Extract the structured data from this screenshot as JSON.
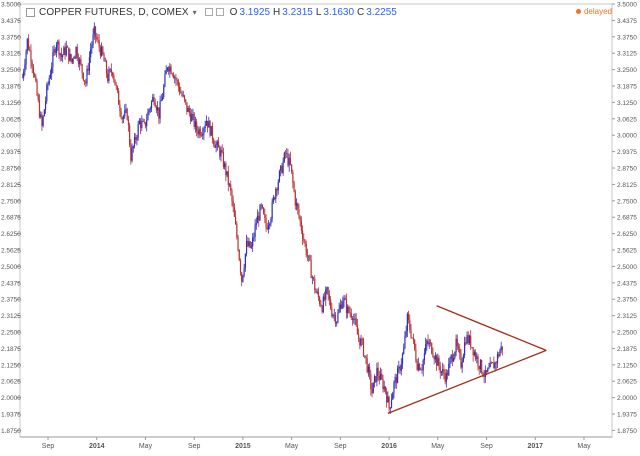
{
  "header": {
    "title": "COPPER FUTURES, D, COMEX",
    "ohlc": [
      {
        "label": "O",
        "value": "3.1925"
      },
      {
        "label": "H",
        "value": "3.2315"
      },
      {
        "label": "L",
        "value": "3.1630"
      },
      {
        "label": "C",
        "value": "3.2255"
      }
    ],
    "status": "delayed"
  },
  "colors": {
    "up": "#2f2fb8",
    "down": "#b83232",
    "trendline": "#a0301a",
    "axis_text": "#555555",
    "status": "#f0731d"
  },
  "chart_data": {
    "type": "candlestick",
    "title": "COPPER FUTURES, D, COMEX",
    "ylim": [
      1.85,
      3.5
    ],
    "y_ticks": [
      "3.5000",
      "3.4375",
      "3.3750",
      "3.3125",
      "3.2500",
      "3.1875",
      "3.1250",
      "3.0625",
      "3.0000",
      "2.9375",
      "2.8750",
      "2.8125",
      "2.7500",
      "2.6875",
      "2.6250",
      "2.5625",
      "2.5000",
      "2.4375",
      "2.3750",
      "2.3125",
      "2.2500",
      "2.1875",
      "2.1250",
      "2.0625",
      "2.0000",
      "1.9375",
      "1.8750"
    ],
    "x_ticks": [
      "Sep",
      "2014",
      "May",
      "Sep",
      "2015",
      "May",
      "Sep",
      "2016",
      "May",
      "Sep",
      "2017",
      "May"
    ],
    "x_tick_index": [
      0.5,
      4.5,
      8.5,
      12.5,
      16.5,
      20.5,
      24.5,
      28.5,
      32.5,
      36.5,
      40.5,
      44.5
    ],
    "x_range_months": [
      -1.8,
      46.8
    ],
    "close_path": [
      [
        -1.6,
        3.22
      ],
      [
        -1.2,
        3.36
      ],
      [
        -0.8,
        3.28
      ],
      [
        -0.4,
        3.15
      ],
      [
        0.0,
        3.03
      ],
      [
        0.4,
        3.17
      ],
      [
        0.8,
        3.27
      ],
      [
        1.2,
        3.36
      ],
      [
        1.6,
        3.3
      ],
      [
        2.0,
        3.33
      ],
      [
        2.4,
        3.28
      ],
      [
        2.8,
        3.33
      ],
      [
        3.2,
        3.26
      ],
      [
        3.6,
        3.2
      ],
      [
        4.0,
        3.33
      ],
      [
        4.3,
        3.39
      ],
      [
        4.6,
        3.35
      ],
      [
        5.0,
        3.3
      ],
      [
        5.4,
        3.22
      ],
      [
        5.8,
        3.25
      ],
      [
        6.2,
        3.15
      ],
      [
        6.6,
        3.07
      ],
      [
        7.0,
        3.08
      ],
      [
        7.3,
        2.92
      ],
      [
        7.6,
        2.97
      ],
      [
        8.0,
        3.05
      ],
      [
        8.4,
        3.03
      ],
      [
        8.8,
        3.1
      ],
      [
        9.2,
        3.15
      ],
      [
        9.6,
        3.08
      ],
      [
        10.0,
        3.18
      ],
      [
        10.3,
        3.27
      ],
      [
        10.7,
        3.25
      ],
      [
        11.1,
        3.2
      ],
      [
        11.5,
        3.15
      ],
      [
        11.9,
        3.1
      ],
      [
        12.3,
        3.07
      ],
      [
        12.7,
        3.02
      ],
      [
        13.1,
        3.02
      ],
      [
        13.5,
        3.06
      ],
      [
        13.9,
        3.01
      ],
      [
        14.3,
        2.96
      ],
      [
        14.7,
        2.93
      ],
      [
        15.1,
        2.86
      ],
      [
        15.5,
        2.78
      ],
      [
        15.8,
        2.68
      ],
      [
        16.1,
        2.58
      ],
      [
        16.4,
        2.45
      ],
      [
        16.8,
        2.58
      ],
      [
        17.2,
        2.57
      ],
      [
        17.6,
        2.67
      ],
      [
        18.0,
        2.72
      ],
      [
        18.4,
        2.65
      ],
      [
        18.8,
        2.7
      ],
      [
        19.2,
        2.8
      ],
      [
        19.6,
        2.86
      ],
      [
        20.0,
        2.93
      ],
      [
        20.4,
        2.88
      ],
      [
        20.8,
        2.75
      ],
      [
        21.2,
        2.67
      ],
      [
        21.6,
        2.58
      ],
      [
        22.0,
        2.5
      ],
      [
        22.5,
        2.4
      ],
      [
        23.0,
        2.35
      ],
      [
        23.4,
        2.4
      ],
      [
        23.8,
        2.33
      ],
      [
        24.2,
        2.3
      ],
      [
        24.7,
        2.38
      ],
      [
        25.1,
        2.33
      ],
      [
        25.5,
        2.32
      ],
      [
        25.9,
        2.24
      ],
      [
        26.3,
        2.2
      ],
      [
        26.7,
        2.12
      ],
      [
        27.1,
        2.02
      ],
      [
        27.5,
        2.1
      ],
      [
        27.9,
        2.06
      ],
      [
        28.2,
        2.03
      ],
      [
        28.5,
        1.96
      ],
      [
        28.9,
        2.05
      ],
      [
        29.3,
        2.1
      ],
      [
        29.7,
        2.18
      ],
      [
        30.0,
        2.3
      ],
      [
        30.4,
        2.23
      ],
      [
        30.8,
        2.13
      ],
      [
        31.2,
        2.12
      ],
      [
        31.6,
        2.21
      ],
      [
        32.0,
        2.19
      ],
      [
        32.4,
        2.14
      ],
      [
        32.8,
        2.1
      ],
      [
        33.2,
        2.08
      ],
      [
        33.6,
        2.15
      ],
      [
        34.0,
        2.2
      ],
      [
        34.4,
        2.13
      ],
      [
        34.8,
        2.23
      ],
      [
        35.2,
        2.21
      ],
      [
        35.6,
        2.16
      ],
      [
        36.0,
        2.12
      ],
      [
        36.4,
        2.08
      ],
      [
        36.8,
        2.11
      ],
      [
        37.2,
        2.13
      ],
      [
        37.6,
        2.18
      ],
      [
        37.9,
        2.2
      ]
    ],
    "trendlines": [
      {
        "from": [
          32.4,
          2.35
        ],
        "to": [
          41.4,
          2.18
        ]
      },
      {
        "from": [
          28.4,
          1.94
        ],
        "to": [
          41.4,
          2.18
        ]
      }
    ]
  }
}
